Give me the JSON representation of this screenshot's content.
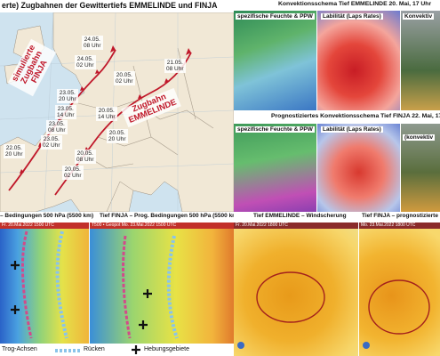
{
  "left_top": {
    "title": "erte) Zugbahnen der Gewittertiefs EMMELINDE und FINJA",
    "track_finja_label": "simulierte Zugbahn FINJA",
    "track_emmelinde_label": "Zugbahn EMMELINDE",
    "time_labels": [
      {
        "t": "24.05.\n08 Uhr"
      },
      {
        "t": "24.05.\n02 Uhr"
      },
      {
        "t": "21.05.\n08 Uhr"
      },
      {
        "t": "20.05.\n02 Uhr"
      },
      {
        "t": "23.05.\n20 Uhr"
      },
      {
        "t": "23.05.\n14 Uhr"
      },
      {
        "t": "23.05.\n08 Uhr"
      },
      {
        "t": "20.05.\n14 Uhr"
      },
      {
        "t": "23.05.\n02 Uhr"
      },
      {
        "t": "22.05.\n20 Uhr"
      },
      {
        "t": "20.05.\n20 Uhr"
      },
      {
        "t": "20.05.\n08 Uhr"
      },
      {
        "t": "20.05.\n02 Uhr"
      }
    ]
  },
  "right_top": {
    "title1": "Konvektionsschema Tief EMMELINDE 20. Mai, 17 Uhr",
    "labels1": [
      "spezifische Feuchte & PPW",
      "Labilität (Laps Rates)",
      "Konvektiv"
    ],
    "title2": "Prognostiziertes Konvektionsschema Tief FINJA 22. Mai, 17",
    "labels2": [
      "spezifische Feuchte & PPW",
      "Labilität (Laps Rates)",
      "(konvektiv"
    ]
  },
  "bottom_left": {
    "title1": "– Bedingungen 500 hPa (5500 km)",
    "title2": "Tief FINJA – Prog. Bedingungen 500 hPa (5500 km)",
    "strip1": "Fr. 20.Mai.2022 1500 UTC",
    "strip2": "T500 • Geopot   Mo. 23.Mai.2022 1500 UTC",
    "legend_trog": "Trog-Achsen",
    "legend_ruecken": "Rücken",
    "legend_hebung": "Hebungsgebiete"
  },
  "bottom_right": {
    "title1": "Tief EMMELINDE – Windscherung",
    "title2": "Tief FINJA – prognostizierte",
    "strip1": "Fr. 20.Mai.2022 1800 UTC",
    "strip2": "Mo. 23.Mai.2022 1800 UTC"
  },
  "colors": {
    "track": "#c0182a",
    "map_bg": "#f3eadb",
    "humid": "#2e8b57",
    "heat": "#d7332e",
    "shear": "#f0a818"
  }
}
